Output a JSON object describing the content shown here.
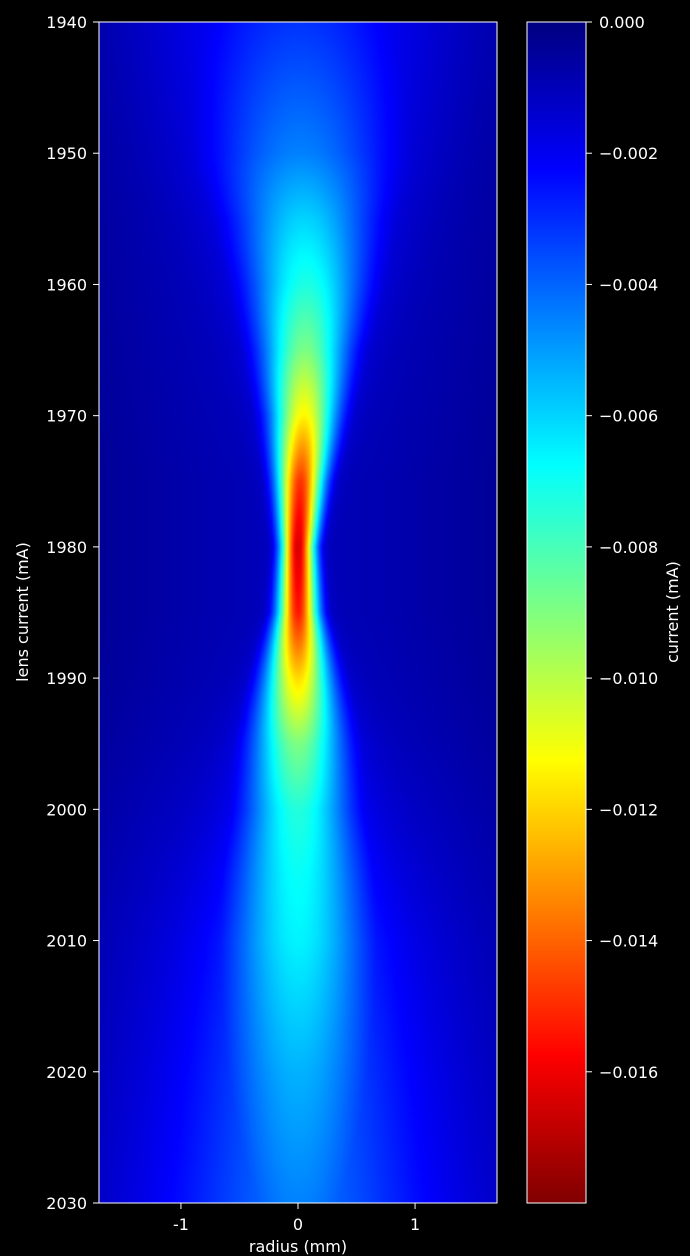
{
  "chart_data": {
    "type": "heatmap",
    "title": "",
    "xlabel": "radius (mm)",
    "ylabel": "lens current (mA)",
    "xlim": [
      -1.7,
      1.7
    ],
    "ylim": [
      1940,
      2030
    ],
    "y_inverted": true,
    "x_ticks": [
      -1,
      0,
      1
    ],
    "x_tick_labels": [
      "-1",
      "0",
      "1"
    ],
    "y_ticks": [
      1940,
      1950,
      1960,
      1970,
      1980,
      1990,
      2000,
      2010,
      2020,
      2030
    ],
    "y_tick_labels": [
      "1940",
      "1950",
      "1960",
      "1970",
      "1980",
      "1990",
      "2000",
      "2010",
      "2020",
      "2030"
    ],
    "colorbar": {
      "label": "current (mA)",
      "range": [
        -0.018,
        0.0
      ],
      "ticks": [
        0.0,
        -0.002,
        -0.004,
        -0.006,
        -0.008,
        -0.01,
        -0.012,
        -0.014,
        -0.016
      ],
      "tick_labels": [
        "0.000",
        "−0.002",
        "−0.004",
        "−0.006",
        "−0.008",
        "−0.010",
        "−0.012",
        "−0.014",
        "−0.016"
      ],
      "colormap": "jet_reversed"
    },
    "profile": {
      "lens_current": [
        1940,
        1950,
        1955,
        1960,
        1965,
        1970,
        1975,
        1980,
        1985,
        1990,
        1995,
        2000,
        2005,
        2010,
        2020,
        2030
      ],
      "peak_current": [
        -0.0025,
        -0.004,
        -0.0055,
        -0.0068,
        -0.0085,
        -0.011,
        -0.0145,
        -0.0162,
        -0.015,
        -0.0115,
        -0.0085,
        -0.0068,
        -0.0062,
        -0.0058,
        -0.0045,
        -0.0035
      ],
      "halfwidth_mm": [
        0.75,
        0.6,
        0.45,
        0.36,
        0.27,
        0.2,
        0.14,
        0.1,
        0.12,
        0.2,
        0.28,
        0.33,
        0.4,
        0.45,
        0.52,
        0.55
      ],
      "center_mm": [
        0.0,
        0.02,
        0.05,
        0.07,
        0.06,
        0.05,
        0.02,
        0.0,
        0.0,
        0.0,
        0.0,
        0.0,
        0.0,
        0.0,
        0.0,
        0.0
      ],
      "background": [
        -0.0018,
        -0.0015,
        -0.0014,
        -0.0013,
        -0.0012,
        -0.0011,
        -0.001,
        -0.001,
        -0.001,
        -0.0011,
        -0.0013,
        -0.0016,
        -0.0019,
        -0.0022,
        -0.0026,
        -0.003
      ],
      "background_halfwidth_mm": 1.3
    }
  }
}
